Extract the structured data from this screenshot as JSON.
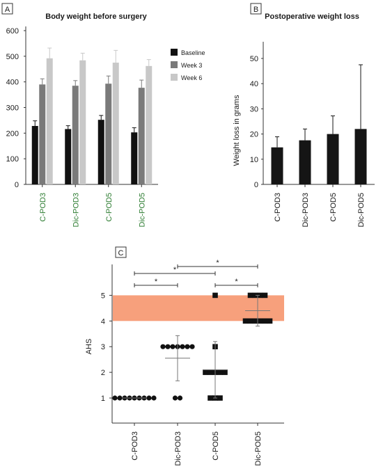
{
  "colors": {
    "baseline": "#111111",
    "week3": "#7a7a7a",
    "week6": "#c8c8c8",
    "bar_b": "#151515",
    "band": "#f7a07c",
    "axis": "#333333",
    "category_text": "#2e7d32"
  },
  "chart_data": [
    {
      "panel": "A",
      "type": "bar",
      "title": "Body weight before surgery",
      "xlabel": "",
      "ylabel": "",
      "ylim": [
        0,
        600
      ],
      "yticks": [
        "600",
        "500",
        "400",
        "300",
        "200",
        "100",
        "0"
      ],
      "categories": [
        "C-POD3",
        "Dic-POD3",
        "C-POD5",
        "Dic-POD5"
      ],
      "legend_position": "right",
      "series": [
        {
          "name": "Baseline",
          "values": [
            228,
            216,
            252,
            203
          ],
          "errors": [
            20,
            13,
            17,
            18
          ]
        },
        {
          "name": "Week 3",
          "values": [
            390,
            385,
            393,
            377
          ],
          "errors": [
            22,
            20,
            30,
            30
          ]
        },
        {
          "name": "Week 6",
          "values": [
            492,
            484,
            475,
            462
          ],
          "errors": [
            40,
            28,
            48,
            25
          ]
        }
      ],
      "grid": false
    },
    {
      "panel": "B",
      "type": "bar",
      "title": "Postoperative weight loss",
      "xlabel": "",
      "ylabel": "Weight loss in grams",
      "ylim": [
        0,
        50
      ],
      "yticks": [
        "50",
        "40",
        "30",
        "20",
        "10",
        "0"
      ],
      "categories": [
        "C-POD3",
        "Dic-POD3",
        "C-POD5",
        "Dic-POD5"
      ],
      "values": [
        14.7,
        17.5,
        20,
        22
      ],
      "errors": [
        4.2,
        4.5,
        7.2,
        25.5
      ],
      "grid": false
    },
    {
      "panel": "C",
      "type": "scatter",
      "title": "",
      "xlabel": "",
      "ylabel": "AHS",
      "ylim": [
        0.5,
        5.5
      ],
      "yticks": [
        "5",
        "4",
        "3",
        "2",
        "1"
      ],
      "categories": [
        "C-POD3",
        "Dic-POD3",
        "C-POD5",
        "Dic-POD5"
      ],
      "shaded_band": [
        4,
        5
      ],
      "series": [
        {
          "category": "C-POD3",
          "marker": "circle",
          "values": [
            1,
            1,
            1,
            1,
            1,
            1,
            1,
            1,
            1
          ],
          "mean": 1,
          "sd": 0
        },
        {
          "category": "Dic-POD3",
          "marker": "circle",
          "values": [
            3,
            3,
            3,
            3,
            3,
            3,
            3,
            1,
            1
          ],
          "mean": 2.55,
          "sd": 0.88
        },
        {
          "category": "C-POD5",
          "marker": "square",
          "values": [
            5,
            3,
            2,
            2,
            2,
            2,
            2,
            1,
            1,
            1
          ],
          "mean": 2.1,
          "sd": 1.1
        },
        {
          "category": "Dic-POD5",
          "marker": "square",
          "values": [
            5,
            5,
            5,
            5,
            4,
            4,
            4,
            4,
            4,
            4
          ],
          "mean": 4.4,
          "sd": 0.6
        }
      ],
      "significance": [
        {
          "from": "C-POD3",
          "to": "C-POD5",
          "label": "*"
        },
        {
          "from": "Dic-POD3",
          "to": "Dic-POD5",
          "label": "*"
        },
        {
          "from": "C-POD3",
          "to": "Dic-POD3",
          "label": "*"
        },
        {
          "from": "C-POD5",
          "to": "Dic-POD5",
          "label": "*"
        }
      ]
    }
  ]
}
